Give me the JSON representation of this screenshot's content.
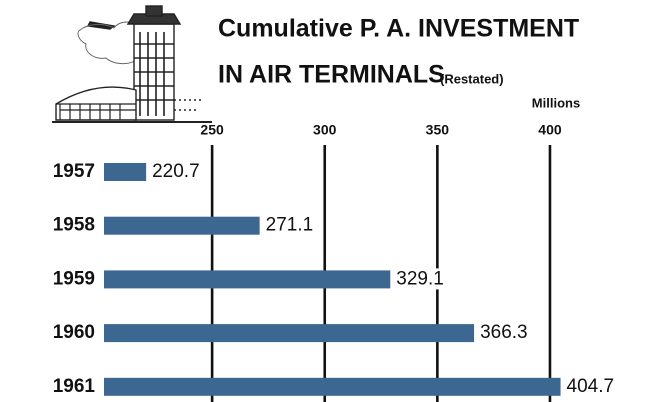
{
  "chart_data": {
    "type": "bar",
    "orientation": "horizontal",
    "title_lines": [
      "Cumulative P. A. INVESTMENT",
      "IN AIR TERMINALS"
    ],
    "subtitle": "(Restated)",
    "unit_label": "Millions",
    "categories": [
      "1957",
      "1958",
      "1959",
      "1960",
      "1961"
    ],
    "values": [
      220.7,
      271.1,
      329.1,
      366.3,
      404.7
    ],
    "color": "#3b6790",
    "xlim": [
      202,
      412
    ],
    "xticks": [
      250,
      300,
      350,
      400
    ],
    "grid": true
  }
}
